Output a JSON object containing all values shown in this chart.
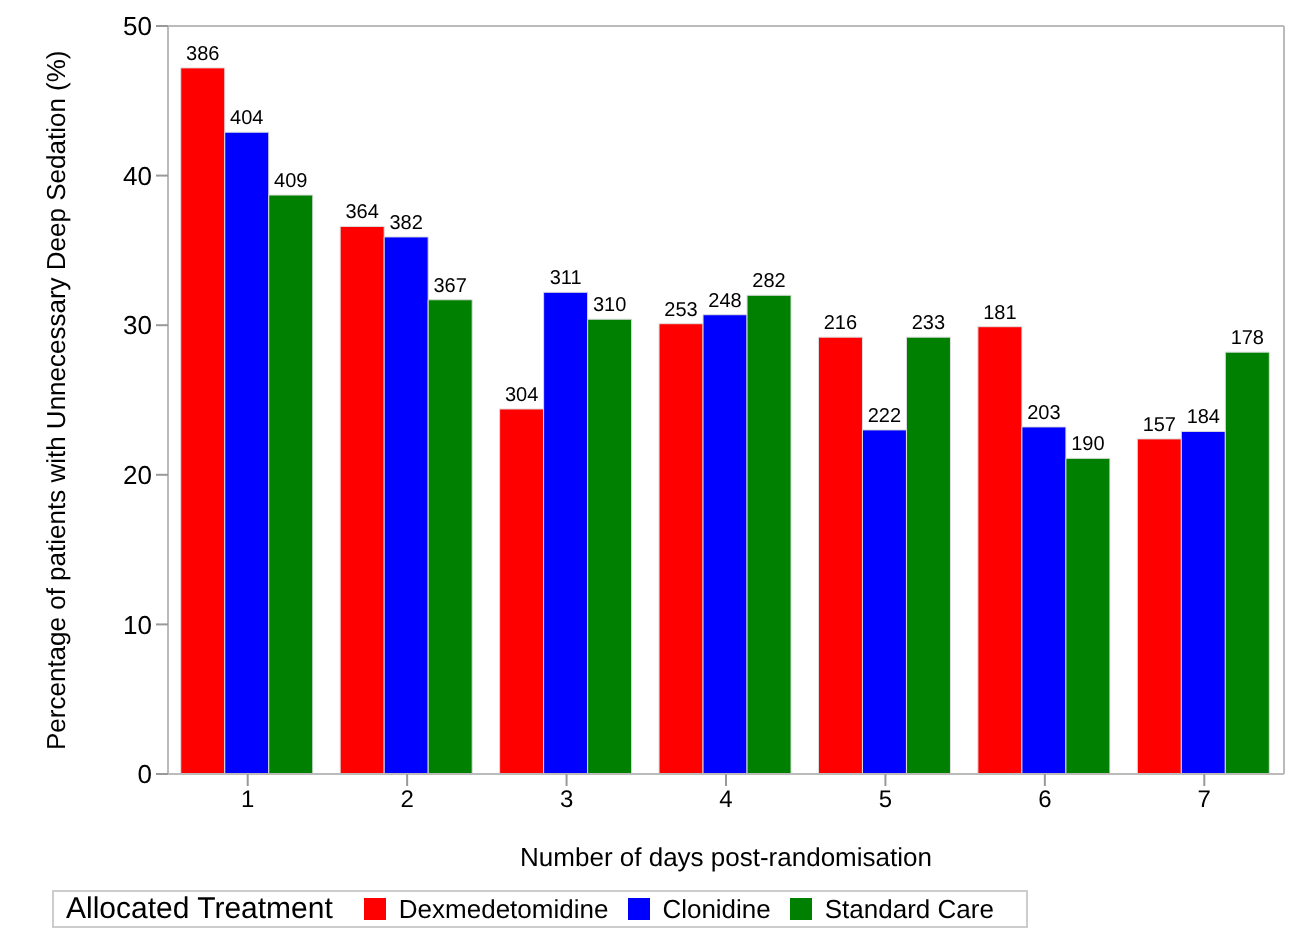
{
  "chart_data": {
    "type": "bar",
    "xlabel": "Number of days post-randomisation",
    "ylabel": "Percentage of patients with Unnecessary Deep Sedation (%)",
    "legend_title": "Allocated Treatment",
    "categories": [
      "1",
      "2",
      "3",
      "4",
      "5",
      "6",
      "7"
    ],
    "series": [
      {
        "name": "Dexmedetomidine",
        "color": "#ff0000",
        "values": [
          47.2,
          36.6,
          24.4,
          30.1,
          29.2,
          29.9,
          22.4
        ]
      },
      {
        "name": "Clonidine",
        "color": "#0000ff",
        "values": [
          42.9,
          35.9,
          32.2,
          30.7,
          23.0,
          23.2,
          22.9
        ]
      },
      {
        "name": "Standard Care",
        "color": "#008000",
        "values": [
          38.7,
          31.7,
          30.4,
          32.0,
          29.2,
          21.1,
          28.2
        ]
      }
    ],
    "annotations": [
      "386",
      "364",
      "304",
      "253",
      "216",
      "181",
      "157",
      "404",
      "382",
      "311",
      "248",
      "222",
      "203",
      "184",
      "409",
      "367",
      "310",
      "282",
      "233",
      "190",
      "178"
    ],
    "ylim": [
      0,
      50
    ],
    "yticks": [
      0,
      10,
      20,
      30,
      40,
      50
    ],
    "grid": false,
    "legend": "bottom"
  }
}
